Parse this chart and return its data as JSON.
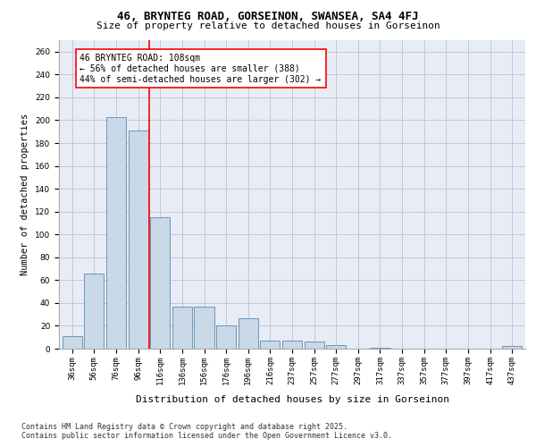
{
  "title1": "46, BRYNTEG ROAD, GORSEINON, SWANSEA, SA4 4FJ",
  "title2": "Size of property relative to detached houses in Gorseinon",
  "xlabel": "Distribution of detached houses by size in Gorseinon",
  "ylabel": "Number of detached properties",
  "categories": [
    "36sqm",
    "56sqm",
    "76sqm",
    "96sqm",
    "116sqm",
    "136sqm",
    "156sqm",
    "176sqm",
    "196sqm",
    "216sqm",
    "237sqm",
    "257sqm",
    "277sqm",
    "297sqm",
    "317sqm",
    "337sqm",
    "357sqm",
    "377sqm",
    "397sqm",
    "417sqm",
    "437sqm"
  ],
  "values": [
    11,
    66,
    203,
    191,
    115,
    37,
    37,
    20,
    27,
    7,
    7,
    6,
    3,
    0,
    1,
    0,
    0,
    0,
    0,
    0,
    2
  ],
  "bar_color": "#c9d9e8",
  "bar_edge_color": "#5a8ab0",
  "property_line_x": 3.5,
  "annotation_text": "46 BRYNTEG ROAD: 108sqm\n← 56% of detached houses are smaller (388)\n44% of semi-detached houses are larger (302) →",
  "annotation_box_color": "white",
  "annotation_box_edge_color": "red",
  "property_line_color": "red",
  "ylim": [
    0,
    270
  ],
  "yticks": [
    0,
    20,
    40,
    60,
    80,
    100,
    120,
    140,
    160,
    180,
    200,
    220,
    240,
    260
  ],
  "grid_color": "#c0c8d8",
  "background_color": "#e8edf5",
  "footnote": "Contains HM Land Registry data © Crown copyright and database right 2025.\nContains public sector information licensed under the Open Government Licence v3.0.",
  "title1_fontsize": 9,
  "title2_fontsize": 8,
  "xlabel_fontsize": 8,
  "ylabel_fontsize": 7.5,
  "tick_fontsize": 6.5,
  "annotation_fontsize": 7,
  "footnote_fontsize": 6
}
